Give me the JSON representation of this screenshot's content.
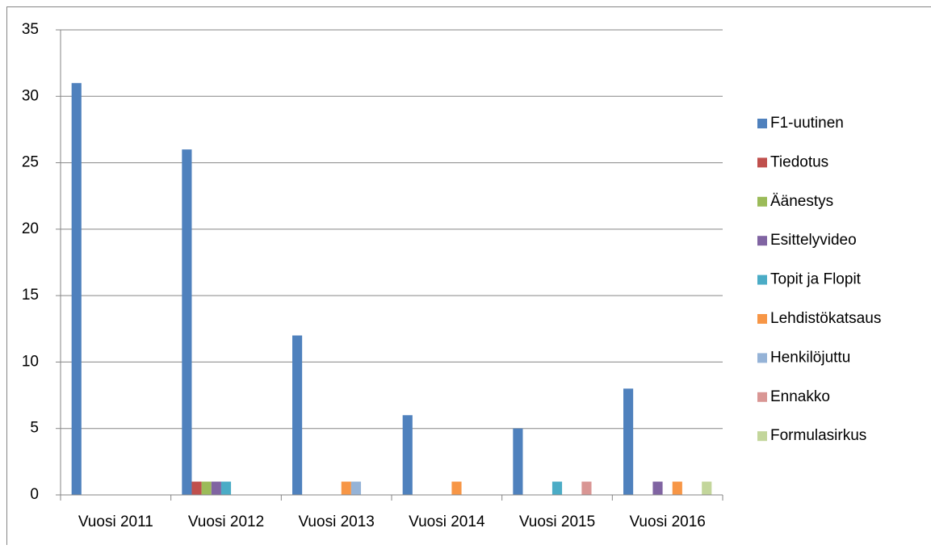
{
  "chart_data": {
    "type": "bar",
    "categories": [
      "Vuosi 2011",
      "Vuosi 2012",
      "Vuosi 2013",
      "Vuosi 2014",
      "Vuosi 2015",
      "Vuosi 2016"
    ],
    "series": [
      {
        "name": "F1-uutinen",
        "color": "#4f81bd",
        "values": [
          31,
          26,
          12,
          6,
          5,
          8
        ]
      },
      {
        "name": "Tiedotus",
        "color": "#c0504d",
        "values": [
          0,
          1,
          0,
          0,
          0,
          0
        ]
      },
      {
        "name": "Äänestys",
        "color": "#9bbb59",
        "values": [
          0,
          1,
          0,
          0,
          0,
          0
        ]
      },
      {
        "name": "Esittelyvideo",
        "color": "#8064a2",
        "values": [
          0,
          1,
          0,
          0,
          0,
          1
        ]
      },
      {
        "name": "Topit ja Flopit",
        "color": "#4bacc6",
        "values": [
          0,
          1,
          0,
          0,
          1,
          0
        ]
      },
      {
        "name": "Lehdistökatsaus",
        "color": "#f79646",
        "values": [
          0,
          0,
          1,
          1,
          0,
          1
        ]
      },
      {
        "name": "Henkilöjuttu",
        "color": "#95b3d7",
        "values": [
          0,
          0,
          1,
          0,
          0,
          0
        ]
      },
      {
        "name": "Ennakko",
        "color": "#d99694",
        "values": [
          0,
          0,
          0,
          0,
          1,
          0
        ]
      },
      {
        "name": "Formulasirkus",
        "color": "#c3d69b",
        "values": [
          0,
          0,
          0,
          0,
          0,
          1
        ]
      }
    ],
    "ylim": [
      0,
      35
    ],
    "yticks": [
      0,
      5,
      10,
      15,
      20,
      25,
      30,
      35
    ],
    "grid": true,
    "legend": "right"
  }
}
